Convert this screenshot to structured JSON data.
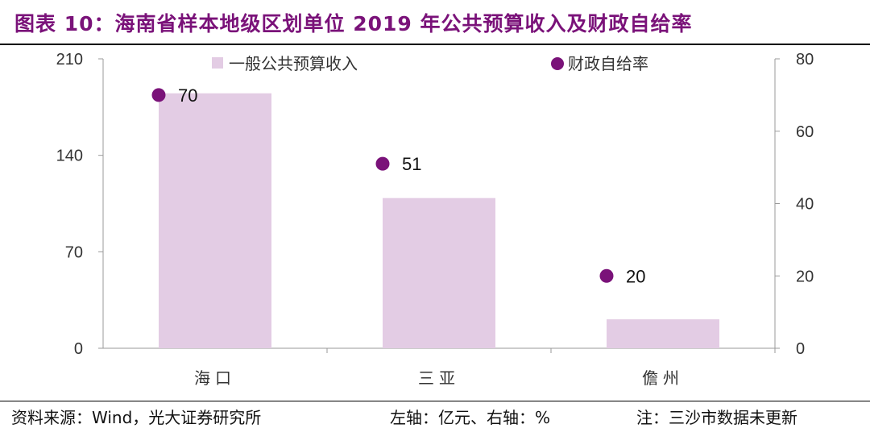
{
  "title": "图表 10：海南省样本地级区划单位 2019 年公共预算收入及财政自给率",
  "footer": {
    "source": "资料来源：Wind，光大证券研究所",
    "axis_note": "左轴：亿元、右轴：%",
    "note": "注：三沙市数据未更新"
  },
  "chart_data": {
    "type": "bar",
    "categories": [
      "海口",
      "三亚",
      "儋州"
    ],
    "series": [
      {
        "name": "一般公共预算收入",
        "type": "bar",
        "axis": "left",
        "color": "#e3cce4",
        "values": [
          185,
          109,
          21
        ]
      },
      {
        "name": "财政自给率",
        "type": "scatter",
        "axis": "right",
        "color": "#7a1279",
        "values": [
          70,
          51,
          20
        ],
        "labels": [
          "70",
          "51",
          "20"
        ]
      }
    ],
    "y_left": {
      "min": 0,
      "max": 210,
      "ticks": [
        0,
        70,
        140,
        210
      ]
    },
    "y_right": {
      "min": 0,
      "max": 80,
      "ticks": [
        0,
        20,
        40,
        60,
        80
      ]
    },
    "legend": [
      "一般公共预算收入",
      "财政自给率"
    ],
    "legend_position": "top"
  }
}
